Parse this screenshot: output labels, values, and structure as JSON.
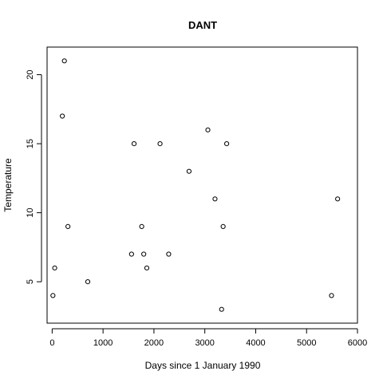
{
  "chart_data": {
    "type": "scatter",
    "title": "DANT",
    "xlabel": "Days since 1 January 1990",
    "ylabel": "Temperature",
    "xlim": [
      -100,
      6000
    ],
    "ylim": [
      2,
      22
    ],
    "xticks": [
      0,
      1000,
      2000,
      3000,
      4000,
      5000,
      6000
    ],
    "yticks": [
      5,
      10,
      15,
      20
    ],
    "grid": false,
    "points": [
      {
        "x": 15,
        "y": 4
      },
      {
        "x": 50,
        "y": 6
      },
      {
        "x": 200,
        "y": 17
      },
      {
        "x": 240,
        "y": 21
      },
      {
        "x": 310,
        "y": 9
      },
      {
        "x": 700,
        "y": 5
      },
      {
        "x": 1560,
        "y": 7
      },
      {
        "x": 1610,
        "y": 15
      },
      {
        "x": 1760,
        "y": 9
      },
      {
        "x": 1800,
        "y": 7
      },
      {
        "x": 1860,
        "y": 6
      },
      {
        "x": 2120,
        "y": 15
      },
      {
        "x": 2290,
        "y": 7
      },
      {
        "x": 2690,
        "y": 13
      },
      {
        "x": 3060,
        "y": 16
      },
      {
        "x": 3200,
        "y": 11
      },
      {
        "x": 3330,
        "y": 3
      },
      {
        "x": 3360,
        "y": 9
      },
      {
        "x": 3430,
        "y": 15
      },
      {
        "x": 5490,
        "y": 4
      },
      {
        "x": 5610,
        "y": 11
      }
    ]
  }
}
